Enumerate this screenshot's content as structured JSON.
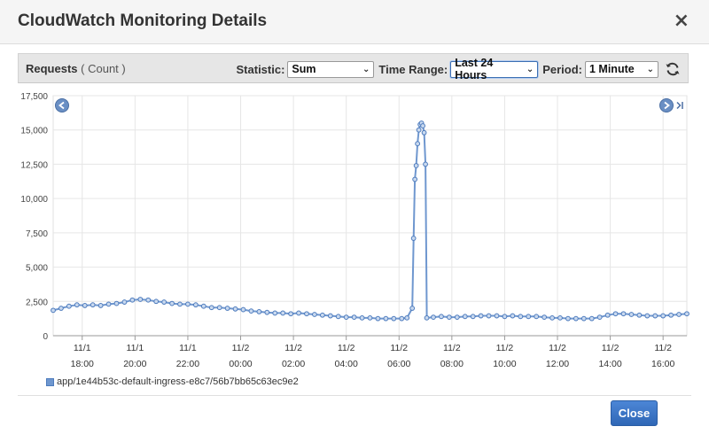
{
  "modal": {
    "title": "CloudWatch Monitoring Details",
    "close_glyph": "×",
    "close_button_label": "Close"
  },
  "metric": {
    "name": "Requests",
    "unit": "( Count )"
  },
  "controls": {
    "statistic_label": "Statistic:",
    "statistic_value": "Sum",
    "time_range_label": "Time Range:",
    "time_range_value": "Last 24 Hours",
    "period_label": "Period:",
    "period_value": "1 Minute",
    "refresh_icon": "refresh-icon"
  },
  "colors": {
    "series": "#6f97cf",
    "series_stroke": "#4d7bbd",
    "nav_button": "#6a8fc4"
  },
  "chart_data": {
    "type": "line",
    "ylim": [
      0,
      17500
    ],
    "yticks": [
      0,
      2500,
      5000,
      7500,
      10000,
      12500,
      15000,
      17500
    ],
    "ytick_labels": [
      "0",
      "2,500",
      "5,000",
      "7,500",
      "10,000",
      "12,500",
      "15,000",
      "17,500"
    ],
    "xlim_hours": [
      16.9,
      40.9
    ],
    "xticks": [
      {
        "hour": 18,
        "date": "11/1",
        "time": "18:00"
      },
      {
        "hour": 20,
        "date": "11/1",
        "time": "20:00"
      },
      {
        "hour": 22,
        "date": "11/1",
        "time": "22:00"
      },
      {
        "hour": 24,
        "date": "11/2",
        "time": "00:00"
      },
      {
        "hour": 26,
        "date": "11/2",
        "time": "02:00"
      },
      {
        "hour": 28,
        "date": "11/2",
        "time": "04:00"
      },
      {
        "hour": 30,
        "date": "11/2",
        "time": "06:00"
      },
      {
        "hour": 32,
        "date": "11/2",
        "time": "08:00"
      },
      {
        "hour": 34,
        "date": "11/2",
        "time": "10:00"
      },
      {
        "hour": 36,
        "date": "11/2",
        "time": "12:00"
      },
      {
        "hour": 38,
        "date": "11/2",
        "time": "14:00"
      },
      {
        "hour": 40,
        "date": "11/2",
        "time": "16:00"
      }
    ],
    "grid": true,
    "legend_position": "bottom-left",
    "series": [
      {
        "name": "app/1e44b53c-default-ingress-e8c7/56b7bb65c63ec9e2",
        "points": [
          [
            16.9,
            1850
          ],
          [
            17.2,
            2000
          ],
          [
            17.5,
            2150
          ],
          [
            17.8,
            2250
          ],
          [
            18.1,
            2200
          ],
          [
            18.4,
            2250
          ],
          [
            18.7,
            2200
          ],
          [
            19.0,
            2300
          ],
          [
            19.3,
            2350
          ],
          [
            19.6,
            2450
          ],
          [
            19.9,
            2600
          ],
          [
            20.2,
            2650
          ],
          [
            20.5,
            2600
          ],
          [
            20.8,
            2500
          ],
          [
            21.1,
            2450
          ],
          [
            21.4,
            2350
          ],
          [
            21.7,
            2300
          ],
          [
            22.0,
            2300
          ],
          [
            22.3,
            2250
          ],
          [
            22.6,
            2150
          ],
          [
            22.9,
            2050
          ],
          [
            23.2,
            2050
          ],
          [
            23.5,
            2000
          ],
          [
            23.8,
            1950
          ],
          [
            24.1,
            1900
          ],
          [
            24.4,
            1800
          ],
          [
            24.7,
            1750
          ],
          [
            25.0,
            1700
          ],
          [
            25.3,
            1650
          ],
          [
            25.6,
            1650
          ],
          [
            25.9,
            1600
          ],
          [
            26.2,
            1650
          ],
          [
            26.5,
            1600
          ],
          [
            26.8,
            1550
          ],
          [
            27.1,
            1500
          ],
          [
            27.4,
            1450
          ],
          [
            27.7,
            1400
          ],
          [
            28.0,
            1350
          ],
          [
            28.3,
            1350
          ],
          [
            28.6,
            1300
          ],
          [
            28.9,
            1300
          ],
          [
            29.2,
            1250
          ],
          [
            29.5,
            1250
          ],
          [
            29.8,
            1250
          ],
          [
            30.1,
            1250
          ],
          [
            30.3,
            1300
          ],
          [
            30.5,
            2000
          ],
          [
            30.55,
            7100
          ],
          [
            30.6,
            11400
          ],
          [
            30.65,
            12400
          ],
          [
            30.7,
            14000
          ],
          [
            30.75,
            15000
          ],
          [
            30.8,
            15400
          ],
          [
            30.85,
            15500
          ],
          [
            30.9,
            15300
          ],
          [
            30.95,
            14800
          ],
          [
            31.0,
            12500
          ],
          [
            31.05,
            1300
          ],
          [
            31.3,
            1350
          ],
          [
            31.6,
            1400
          ],
          [
            31.9,
            1350
          ],
          [
            32.2,
            1350
          ],
          [
            32.5,
            1400
          ],
          [
            32.8,
            1400
          ],
          [
            33.1,
            1450
          ],
          [
            33.4,
            1450
          ],
          [
            33.7,
            1450
          ],
          [
            34.0,
            1400
          ],
          [
            34.3,
            1450
          ],
          [
            34.6,
            1400
          ],
          [
            34.9,
            1400
          ],
          [
            35.2,
            1400
          ],
          [
            35.5,
            1350
          ],
          [
            35.8,
            1300
          ],
          [
            36.1,
            1300
          ],
          [
            36.4,
            1250
          ],
          [
            36.7,
            1250
          ],
          [
            37.0,
            1250
          ],
          [
            37.3,
            1250
          ],
          [
            37.6,
            1350
          ],
          [
            37.9,
            1500
          ],
          [
            38.2,
            1600
          ],
          [
            38.5,
            1600
          ],
          [
            38.8,
            1550
          ],
          [
            39.1,
            1500
          ],
          [
            39.4,
            1450
          ],
          [
            39.7,
            1450
          ],
          [
            40.0,
            1450
          ],
          [
            40.3,
            1500
          ],
          [
            40.6,
            1550
          ],
          [
            40.9,
            1600
          ]
        ]
      }
    ]
  }
}
